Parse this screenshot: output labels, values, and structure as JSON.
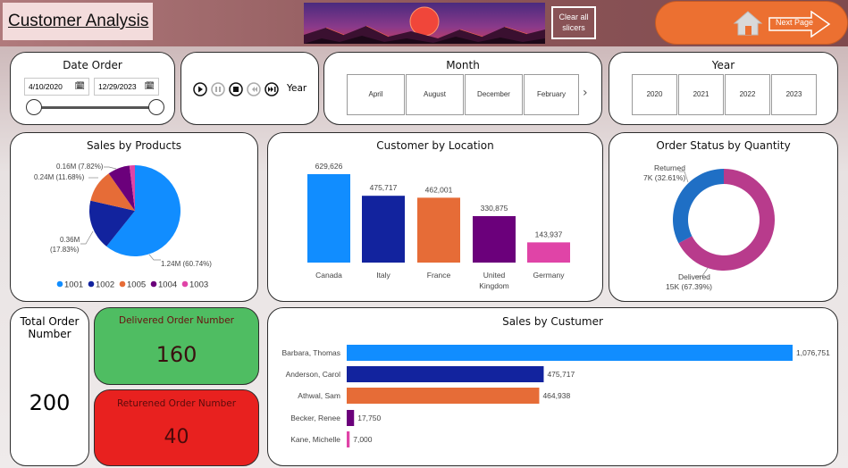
{
  "header": {
    "title": "Customer Analysis",
    "clear_all_line1": "Clear all",
    "clear_all_line2": "slicers",
    "next_page": "Next Page"
  },
  "date_order": {
    "title": "Date Order",
    "start": "4/10/2020",
    "end": "12/29/2023",
    "range_start_fraction": 0,
    "range_end_fraction": 1
  },
  "player": {
    "label": "Year"
  },
  "month": {
    "title": "Month",
    "items": [
      "April",
      "August",
      "December",
      "February"
    ]
  },
  "year": {
    "title": "Year",
    "items": [
      "2020",
      "2021",
      "2022",
      "2023"
    ]
  },
  "sales_by_products": {
    "title": "Sales by Products",
    "chart_data": {
      "type": "pie",
      "title": "Sales by Products",
      "slices": [
        {
          "name": "1001",
          "label": "1.24M (60.74%)",
          "value": 60.74,
          "color": "#118dff"
        },
        {
          "name": "1002",
          "label_line1": "0.36M",
          "label_line2": "(17.83%)",
          "value": 17.83,
          "color": "#12239e"
        },
        {
          "name": "1005",
          "label": "0.24M (11.68%)",
          "value": 11.68,
          "color": "#e66c37"
        },
        {
          "name": "1004",
          "label": "0.16M (7.82%)",
          "value": 7.82,
          "color": "#6b007b"
        },
        {
          "name": "1003",
          "label": "",
          "value": 1.93,
          "color": "#e044a7"
        }
      ],
      "legend_position": "bottom"
    }
  },
  "customer_by_location": {
    "title": "Customer by Location",
    "chart_data": {
      "type": "bar",
      "title": "Customer by Location",
      "categories": [
        "Canada",
        "Italy",
        "France",
        "United Kingdom",
        "Germany"
      ],
      "category_lines": [
        [
          "Canada"
        ],
        [
          "Italy"
        ],
        [
          "France"
        ],
        [
          "United",
          "Kingdom"
        ],
        [
          "Germany"
        ]
      ],
      "values": [
        629626,
        475717,
        462001,
        330875,
        143937
      ],
      "labels": [
        "629,626",
        "475,717",
        "462,001",
        "330,875",
        "143,937"
      ],
      "colors": [
        "#118dff",
        "#12239e",
        "#e66c37",
        "#6b007b",
        "#e044a7"
      ],
      "ylim": [
        0,
        680000
      ]
    }
  },
  "order_status": {
    "title": "Order Status by Quantity",
    "chart_data": {
      "type": "pie",
      "title": "Order Status by Quantity",
      "slices": [
        {
          "name": "Delivered",
          "label": "15K (67.39%)",
          "value": 67.39,
          "color": "#b83b8c"
        },
        {
          "name": "Returned",
          "label": "7K (32.61%)",
          "value": 32.61,
          "color": "#1f6fc5"
        }
      ]
    }
  },
  "kpi": {
    "total_label_line1": "Total Order",
    "total_label_line2": "Number",
    "total_value": "200",
    "delivered_label": "Delivered Order Number",
    "delivered_value": "160",
    "returned_label": "Returened Order Number",
    "returned_value": "40"
  },
  "sales_by_customer": {
    "title": "Sales by Custumer",
    "chart_data": {
      "type": "bar",
      "orientation": "horizontal",
      "title": "Sales by Custumer",
      "categories": [
        "Barbara, Thomas",
        "Anderson, Carol",
        "Athwal, Sam",
        "Becker, Renee",
        "Kane, Michelle"
      ],
      "values": [
        1076751,
        475717,
        464938,
        17750,
        7000
      ],
      "labels": [
        "1,076,751",
        "475,717",
        "464,938",
        "17,750",
        "7,000"
      ],
      "colors": [
        "#118dff",
        "#12239e",
        "#e66c37",
        "#6b007b",
        "#e044a7"
      ],
      "xlim": [
        0,
        1076751
      ]
    }
  },
  "colors": {
    "accent_orange": "#ec7031",
    "delivered_green": "#4fbd62",
    "returned_red": "#e8211f"
  }
}
